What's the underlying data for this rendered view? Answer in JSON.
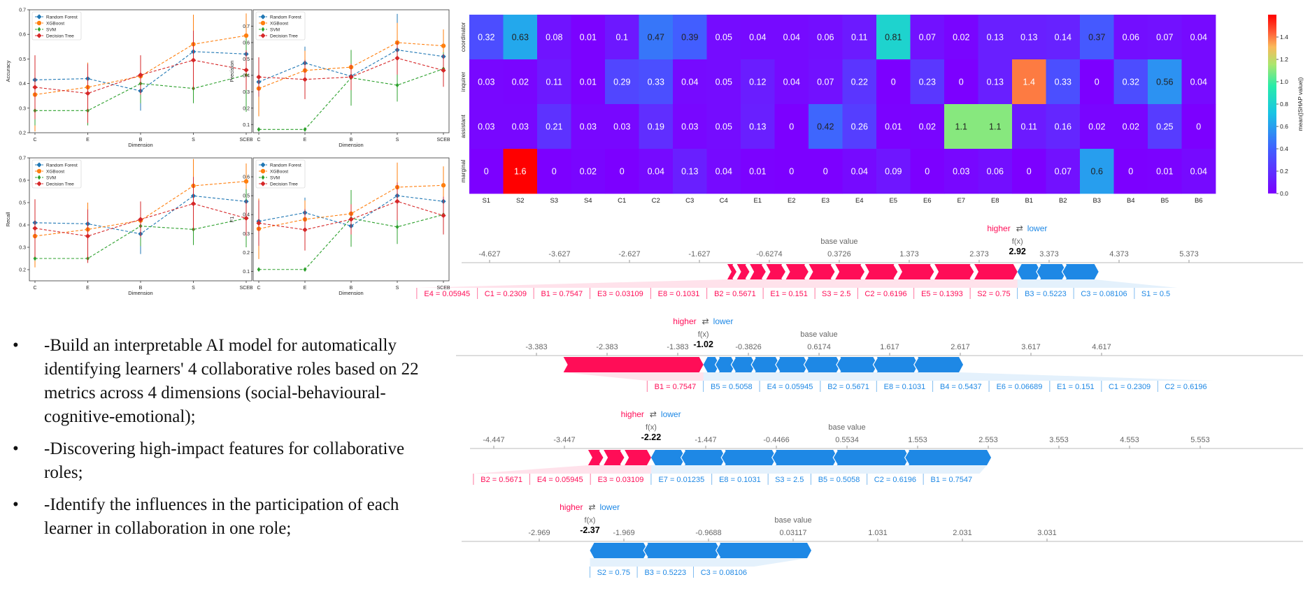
{
  "chart_data": [
    {
      "type": "line",
      "id": "line-acc",
      "xlabel": "Dimension",
      "ylabel": "Accuracy",
      "categories": [
        "C",
        "E",
        "B",
        "S",
        "SCEB"
      ],
      "ylim": [
        0.2,
        0.7
      ],
      "yticks": [
        0.2,
        0.3,
        0.4,
        0.5,
        0.6,
        0.7
      ],
      "legend": [
        "Random Forest",
        "XGBoost",
        "SVM",
        "Decision Tree"
      ],
      "series": [
        {
          "name": "Random Forest",
          "color": "#1f77b4",
          "values": [
            0.415,
            0.42,
            0.37,
            0.53,
            0.52
          ],
          "err": [
            0.06,
            0.06,
            0.08,
            0.08,
            0.06
          ]
        },
        {
          "name": "XGBoost",
          "color": "#ff7f0e",
          "values": [
            0.355,
            0.385,
            0.43,
            0.56,
            0.595
          ],
          "err": [
            0.15,
            0.1,
            0.08,
            0.12,
            0.09
          ]
        },
        {
          "name": "SVM",
          "color": "#2ca02c",
          "values": [
            0.29,
            0.29,
            0.4,
            0.38,
            0.435
          ],
          "err": [
            0.06,
            0.06,
            0.08,
            0.06,
            0.15
          ]
        },
        {
          "name": "Decision Tree",
          "color": "#d62728",
          "values": [
            0.385,
            0.36,
            0.435,
            0.495,
            0.455
          ],
          "err": [
            0.13,
            0.12,
            0.08,
            0.12,
            0.08
          ]
        }
      ]
    },
    {
      "type": "line",
      "id": "line-prec",
      "xlabel": "Dimension",
      "ylabel": "Precision",
      "categories": [
        "C",
        "E",
        "B",
        "S",
        "SCEB"
      ],
      "ylim": [
        0.05,
        0.8
      ],
      "yticks": [
        0.1,
        0.2,
        0.3,
        0.4,
        0.5,
        0.6,
        0.7
      ],
      "legend": [
        "Random Forest",
        "XGBoost",
        "SVM",
        "Decision Tree"
      ],
      "series": [
        {
          "name": "Random Forest",
          "color": "#1f77b4",
          "values": [
            0.36,
            0.475,
            0.395,
            0.555,
            0.515
          ],
          "err": [
            0.07,
            0.1,
            0.1,
            0.22,
            0.1
          ]
        },
        {
          "name": "XGBoost",
          "color": "#ff7f0e",
          "values": [
            0.32,
            0.43,
            0.45,
            0.6,
            0.58
          ],
          "err": [
            0.17,
            0.12,
            0.08,
            0.12,
            0.1
          ]
        },
        {
          "name": "SVM",
          "color": "#2ca02c",
          "values": [
            0.07,
            0.07,
            0.385,
            0.34,
            0.44
          ],
          "err": [
            0,
            0,
            0.17,
            0.1,
            0.1
          ]
        },
        {
          "name": "Decision Tree",
          "color": "#d62728",
          "values": [
            0.39,
            0.375,
            0.39,
            0.505,
            0.43
          ],
          "err": [
            0.12,
            0.12,
            0.08,
            0.1,
            0.1
          ]
        }
      ]
    },
    {
      "type": "line",
      "id": "line-rec",
      "xlabel": "Dimension",
      "ylabel": "Recall",
      "categories": [
        "C",
        "E",
        "B",
        "S",
        "SCEB"
      ],
      "ylim": [
        0.15,
        0.7
      ],
      "yticks": [
        0.2,
        0.3,
        0.4,
        0.5,
        0.6,
        0.7
      ],
      "legend": [
        "Random Forest",
        "XGBoost",
        "SVM",
        "Decision Tree"
      ],
      "series": [
        {
          "name": "Random Forest",
          "color": "#1f77b4",
          "values": [
            0.41,
            0.405,
            0.36,
            0.53,
            0.505
          ],
          "err": [
            0.06,
            0.06,
            0.09,
            0.09,
            0.06
          ]
        },
        {
          "name": "XGBoost",
          "color": "#ff7f0e",
          "values": [
            0.35,
            0.38,
            0.42,
            0.575,
            0.595
          ],
          "err": [
            0.14,
            0.12,
            0.07,
            0.12,
            0.08
          ]
        },
        {
          "name": "SVM",
          "color": "#2ca02c",
          "values": [
            0.25,
            0.25,
            0.395,
            0.38,
            0.43
          ],
          "err": [
            0,
            0,
            0.09,
            0.07,
            0.13
          ]
        },
        {
          "name": "Decision Tree",
          "color": "#d62728",
          "values": [
            0.385,
            0.35,
            0.425,
            0.495,
            0.43
          ],
          "err": [
            0.13,
            0.12,
            0.08,
            0.12,
            0.08
          ]
        }
      ]
    },
    {
      "type": "line",
      "id": "line-f1",
      "xlabel": "Dimension",
      "ylabel": "F1",
      "categories": [
        "C",
        "E",
        "B",
        "S",
        "SCEB"
      ],
      "ylim": [
        0.05,
        0.7
      ],
      "yticks": [
        0.1,
        0.2,
        0.3,
        0.4,
        0.5,
        0.6
      ],
      "legend": [
        "Random Forest",
        "XGBoost",
        "SVM",
        "Decision Tree"
      ],
      "series": [
        {
          "name": "Random Forest",
          "color": "#1f77b4",
          "values": [
            0.365,
            0.41,
            0.34,
            0.5,
            0.47
          ],
          "err": [
            0.06,
            0.08,
            0.1,
            0.15,
            0.07
          ]
        },
        {
          "name": "XGBoost",
          "color": "#ff7f0e",
          "values": [
            0.325,
            0.375,
            0.405,
            0.545,
            0.555
          ],
          "err": [
            0.16,
            0.1,
            0.07,
            0.13,
            0.1
          ]
        },
        {
          "name": "SVM",
          "color": "#2ca02c",
          "values": [
            0.11,
            0.11,
            0.38,
            0.335,
            0.4
          ],
          "err": [
            0,
            0,
            0.15,
            0.09,
            0.09
          ]
        },
        {
          "name": "Decision Tree",
          "color": "#d62728",
          "values": [
            0.355,
            0.32,
            0.375,
            0.47,
            0.395
          ],
          "err": [
            0.12,
            0.11,
            0.08,
            0.1,
            0.1
          ]
        }
      ]
    },
    {
      "type": "heatmap",
      "id": "heatmap",
      "rows": [
        "coordinator",
        "inquirer",
        "assistant",
        "marginal"
      ],
      "cols": [
        "S1",
        "S2",
        "S3",
        "S4",
        "C1",
        "C2",
        "C3",
        "C4",
        "E1",
        "E2",
        "E3",
        "E4",
        "E5",
        "E6",
        "E7",
        "E8",
        "B1",
        "B2",
        "B3",
        "B4",
        "B5",
        "B6"
      ],
      "values": [
        [
          0.32,
          0.63,
          0.08,
          0.01,
          0.1,
          0.47,
          0.39,
          0.05,
          0.04,
          0.04,
          0.06,
          0.11,
          0.81,
          0.07,
          0.02,
          0.13,
          0.13,
          0.14,
          0.37,
          0.06,
          0.07,
          0.04
        ],
        [
          0.03,
          0.02,
          0.11,
          0.01,
          0.29,
          0.33,
          0.04,
          0.05,
          0.12,
          0.04,
          0.07,
          0.22,
          0,
          0.23,
          0,
          0.13,
          1.4,
          0.33,
          0,
          0.32,
          0.56,
          0.04
        ],
        [
          0.03,
          0.03,
          0.21,
          0.03,
          0.03,
          0.19,
          0.03,
          0.05,
          0.13,
          0,
          0.42,
          0.26,
          0.01,
          0.02,
          1.1,
          1.1,
          0.11,
          0.16,
          0.02,
          0.02,
          0.25,
          0
        ],
        [
          0,
          1.6,
          0,
          0.02,
          0,
          0.04,
          0.13,
          0.04,
          0.01,
          0,
          0,
          0.04,
          0.09,
          0,
          0.03,
          0.06,
          0,
          0.07,
          0.6,
          0,
          0.01,
          0.04
        ]
      ],
      "vmin": 0,
      "vmax": 1.6,
      "colorbar_label": "mean(|SHAP value|)",
      "colorbar_ticks": [
        "0.0",
        "0.2",
        "0.4",
        "0.6",
        "0.8",
        "1.0",
        "1.2",
        "1.4"
      ]
    },
    {
      "type": "force",
      "id": "force1",
      "ticks": [
        "-4.627",
        "-3.627",
        "-2.627",
        "-1.627",
        "-0.6274",
        "0.3726",
        "1.373",
        "2.373",
        "3.373",
        "4.373",
        "5.373"
      ],
      "base_value": 0.3726,
      "fx": 2.92,
      "fx_label": "2.92",
      "higher_label": "higher",
      "lower_label": "lower",
      "base_label": "base value",
      "fx_caption": "f(x)",
      "pos_features": [
        "E4 = 0.05945",
        "C1 = 0.2309",
        "B1 = 0.7547",
        "E3 = 0.03109",
        "E8 = 0.1031",
        "B2 = 0.5671",
        "E1 = 0.151",
        "S3 = 2.5",
        "C2 = 0.6196",
        "E5 = 0.1393",
        "S2 = 0.75"
      ],
      "neg_features": [
        "B3 = 0.5223",
        "C3 = 0.08106",
        "S1 = 0.5"
      ]
    },
    {
      "type": "force",
      "id": "force2",
      "ticks": [
        "-3.383",
        "-2.383",
        "-1.383",
        "-0.3826",
        "0.6174",
        "1.617",
        "2.617",
        "3.617",
        "4.617"
      ],
      "base_value": 0.6174,
      "fx": -1.02,
      "fx_label": "-1.02",
      "higher_label": "higher",
      "lower_label": "lower",
      "base_label": "base value",
      "fx_caption": "f(x)",
      "pos_features": [
        "B1 = 0.7547"
      ],
      "neg_features": [
        "B5 = 0.5058",
        "E4 = 0.05945",
        "B2 = 0.5671",
        "E8 = 0.1031",
        "B4 = 0.5437",
        "E6 = 0.06689",
        "E1 = 0.151",
        "C1 = 0.2309",
        "C2 = 0.6196"
      ]
    },
    {
      "type": "force",
      "id": "force3",
      "ticks": [
        "-4.447",
        "-3.447",
        "-2.447",
        "-1.447",
        "-0.4466",
        "0.5534",
        "1.553",
        "2.553",
        "3.553",
        "4.553",
        "5.553"
      ],
      "base_value": 0.5534,
      "fx": -2.22,
      "fx_label": "-2.22",
      "higher_label": "higher",
      "lower_label": "lower",
      "base_label": "base value",
      "fx_caption": "f(x)",
      "pos_features": [
        "B2 = 0.5671",
        "E4 = 0.05945",
        "E3 = 0.03109"
      ],
      "neg_features": [
        "E7 = 0.01235",
        "E8 = 0.1031",
        "S3 = 2.5",
        "B5 = 0.5058",
        "C2 = 0.6196",
        "B1 = 0.7547"
      ]
    },
    {
      "type": "force",
      "id": "force4",
      "ticks": [
        "-2.969",
        "-1.969",
        "-0.9688",
        "0.03117",
        "1.031",
        "2.031",
        "3.031"
      ],
      "base_value": 0.03117,
      "fx": -2.37,
      "fx_label": "-2.37",
      "higher_label": "higher",
      "lower_label": "lower",
      "base_label": "base value",
      "fx_caption": "f(x)",
      "pos_features": [],
      "neg_features": [
        "S2 = 0.75",
        "B3 = 0.5223",
        "C3 = 0.08106"
      ]
    }
  ],
  "bullets": {
    "marker": "•",
    "items": [
      "-Build an interpretable AI model for automatically identifying learners' 4 collaborative roles based on 22 metrics across 4 dimensions (social-behavioural-cognitive-emotional);",
      "-Discovering high-impact features for collaborative roles;",
      "-Identify the influences in the participation of each learner in collaboration in one role;"
    ]
  },
  "colors": {
    "pos": "#ff0d57",
    "neg": "#1e88e5"
  }
}
